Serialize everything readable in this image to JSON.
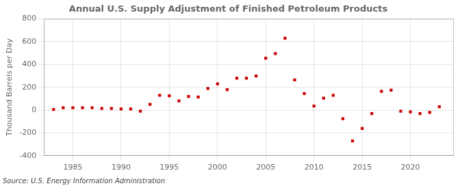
{
  "chart_data": {
    "type": "scatter",
    "title": "Annual U.S. Supply Adjustment of Finished Petroleum Products",
    "ylabel": "Thousand Barrels per Day",
    "annotation": "Source: U.S. Energy Information Administration",
    "x": [
      1983,
      1984,
      1985,
      1986,
      1987,
      1988,
      1989,
      1990,
      1991,
      1992,
      1993,
      1994,
      1995,
      1996,
      1997,
      1998,
      1999,
      2000,
      2001,
      2002,
      2003,
      2004,
      2005,
      2006,
      2007,
      2008,
      2009,
      2010,
      2011,
      2012,
      2013,
      2014,
      2015,
      2016,
      2017,
      2018,
      2019,
      2020,
      2021,
      2022,
      2023
    ],
    "values": [
      5,
      20,
      20,
      20,
      20,
      15,
      15,
      10,
      10,
      -10,
      50,
      130,
      125,
      80,
      120,
      115,
      190,
      230,
      180,
      280,
      280,
      300,
      455,
      495,
      630,
      265,
      145,
      35,
      105,
      130,
      -75,
      -270,
      -160,
      -30,
      165,
      175,
      -10,
      -15,
      -30,
      -20,
      30
    ],
    "color": "#cc0000",
    "marker": "square",
    "xlim": [
      1982,
      2024.5
    ],
    "xticks": [
      1985,
      1990,
      1995,
      2000,
      2005,
      2010,
      2015,
      2020
    ],
    "ylim": [
      -400,
      800
    ],
    "yticks": [
      -400,
      -200,
      0,
      200,
      400,
      600,
      800
    ],
    "grid": true
  }
}
